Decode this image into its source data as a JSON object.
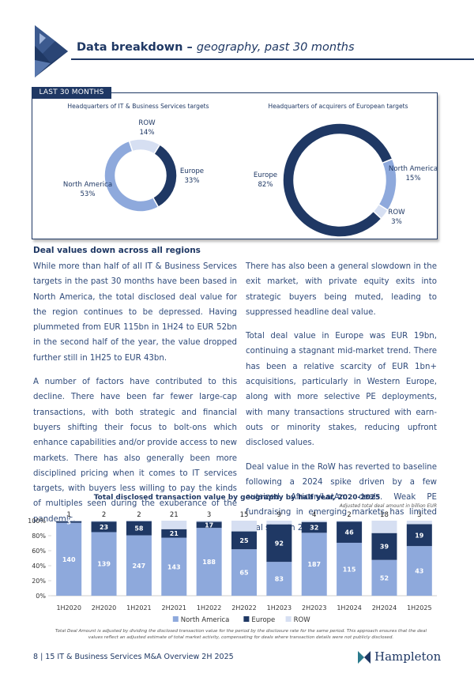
{
  "header": {
    "title": "Data breakdown –",
    "subtitle": "geography, past 30 months"
  },
  "panel_label": "LAST 30 MONTHS",
  "section_heading": "Deal values down across all regions",
  "left_column": [
    "While more than half of all IT & Business Services targets in the past 30 months have been based in North America, the total disclosed deal value for the region continues to be depressed. Having plummeted from EUR 115bn in 1H24 to EUR 52bn in the second half of the year, the value dropped further still in 1H25 to EUR 43bn.",
    "A number of factors have contributed to this decline. There have been far fewer large-cap transactions, with both strategic and financial buyers shifting their focus to bolt-ons which enhance capabilities and/or provide access to new markets. There has also generally been more disciplined pricing when it comes to IT services targets, with buyers less willing to pay the kinds of multiples seen during the exuberance of the pandemic."
  ],
  "right_column": [
    "There has also been a general slowdown in the exit market, with private equity exits into strategic buyers being muted, leading to suppressed headline deal value.",
    "Total deal value in Europe was EUR 19bn, continuing a stagnant mid-market trend. There has been a relative scarcity of EUR 1bn+ acquisitions, particularly in Western Europe, along with more selective PE deployments, with many transactions structured with earn-outs or minority stakes, reducing upfront disclosed values.",
    "Deal value in the RoW has reverted to baseline following a 2024 spike driven by a few outsized African/LatAm deals. Weak PE fundraising in emerging markets has limited deal sizes in 2025."
  ],
  "chart_data": [
    {
      "type": "donut",
      "title": "Headquarters of IT & Business Services targets",
      "categories": [
        "Europe",
        "North America",
        "ROW"
      ],
      "values": [
        33,
        53,
        14
      ],
      "value_labels": [
        "33%",
        "53%",
        "14%"
      ],
      "colors": [
        "#1f3864",
        "#8ea9dc",
        "#d6dff2"
      ]
    },
    {
      "type": "donut",
      "title": "Headquarters of acquirers of European targets",
      "categories": [
        "North America",
        "ROW",
        "Europe"
      ],
      "values": [
        15,
        3,
        82
      ],
      "value_labels": [
        "15%",
        "3%",
        "82%"
      ],
      "colors": [
        "#8ea9dc",
        "#d6dff2",
        "#1f3864"
      ]
    },
    {
      "type": "bar",
      "title": "Total disclosed transaction value by geography by half year, 2020-2025",
      "subtitle": "Adjusted total deal amount in billion EUR",
      "stacked": "percent",
      "categories": [
        "1H2020",
        "2H2020",
        "1H2021",
        "2H2021",
        "1H2022",
        "2H2022",
        "1H2023",
        "2H2023",
        "1H2024",
        "2H2024",
        "1H2025"
      ],
      "series": [
        {
          "name": "North America",
          "color": "#8ea9dc",
          "values": [
            140,
            139,
            247,
            143,
            188,
            65,
            83,
            187,
            115,
            52,
            43
          ]
        },
        {
          "name": "Europe",
          "color": "#1f3864",
          "values": [
            3,
            23,
            58,
            21,
            17,
            25,
            92,
            32,
            46,
            39,
            19
          ]
        },
        {
          "name": "ROW",
          "color": "#d6dff2",
          "values": [
            1,
            2,
            2,
            21,
            3,
            15,
            9,
            4,
            2,
            18,
            3
          ]
        }
      ],
      "ylim": [
        0,
        100
      ],
      "yticks": [
        {
          "value": 0,
          "label": "0%"
        },
        {
          "value": 20,
          "label": "20%"
        },
        {
          "value": 40,
          "label": "40%"
        },
        {
          "value": 60,
          "label": "60%"
        },
        {
          "value": 80,
          "label": "80%"
        },
        {
          "value": 100,
          "label": "100%"
        }
      ],
      "legend": "bottom",
      "note": "Total Deal Amount is adjusted by dividing the disclosed transaction value for the period by the disclosure rate for the same period. This approach ensures that the deal values reflect an adjusted estimate of total market activity, compensating for deals where transaction details were not publicly disclosed."
    }
  ],
  "footer": {
    "page": "8 | 15 IT & Business Services M&A Overview 2H 2025",
    "brand": "Hampleton"
  }
}
